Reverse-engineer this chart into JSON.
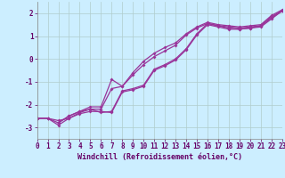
{
  "xlabel": "Windchill (Refroidissement éolien,°C)",
  "background_color": "#cceeff",
  "grid_color": "#aaddcc",
  "line_color": "#993399",
  "xlim": [
    0,
    23
  ],
  "ylim": [
    -3.5,
    2.5
  ],
  "yticks": [
    -3,
    -2,
    -1,
    0,
    1,
    2
  ],
  "xticks": [
    0,
    1,
    2,
    3,
    4,
    5,
    6,
    7,
    8,
    9,
    10,
    11,
    12,
    13,
    14,
    15,
    16,
    17,
    18,
    19,
    20,
    21,
    22,
    23
  ],
  "series1_x": [
    0,
    1,
    2,
    3,
    4,
    5,
    6,
    7,
    8,
    9,
    10,
    11,
    12,
    13,
    14,
    15,
    16,
    17,
    18,
    19,
    20,
    21,
    22,
    23
  ],
  "series1_y": [
    -2.6,
    -2.6,
    -2.8,
    -2.5,
    -2.3,
    -2.2,
    -2.2,
    -1.3,
    -1.2,
    -0.7,
    -0.25,
    0.1,
    0.35,
    0.6,
    1.05,
    1.35,
    1.55,
    1.45,
    1.4,
    1.35,
    1.4,
    1.45,
    1.85,
    2.1
  ],
  "series2_x": [
    0,
    1,
    2,
    3,
    4,
    5,
    6,
    7,
    8,
    9,
    10,
    11,
    12,
    13,
    14,
    15,
    16,
    17,
    18,
    19,
    20,
    21,
    22,
    23
  ],
  "series2_y": [
    -2.6,
    -2.6,
    -2.7,
    -2.6,
    -2.35,
    -2.2,
    -2.35,
    -2.3,
    -1.4,
    -1.3,
    -1.15,
    -0.45,
    -0.25,
    0.0,
    0.45,
    1.1,
    1.55,
    1.45,
    1.35,
    1.3,
    1.35,
    1.45,
    1.8,
    2.1
  ],
  "series3_x": [
    0,
    1,
    2,
    3,
    4,
    5,
    6,
    7,
    8,
    9,
    10,
    11,
    12,
    13,
    14,
    15,
    16,
    17,
    18,
    19,
    20,
    21,
    22,
    23
  ],
  "series3_y": [
    -2.6,
    -2.6,
    -2.9,
    -2.6,
    -2.4,
    -2.3,
    -2.3,
    -2.35,
    -1.45,
    -1.35,
    -1.2,
    -0.5,
    -0.3,
    -0.05,
    0.4,
    1.05,
    1.5,
    1.4,
    1.3,
    1.3,
    1.35,
    1.4,
    1.75,
    2.1
  ],
  "series4_x": [
    2,
    3,
    4,
    5,
    6,
    7,
    8,
    9,
    10,
    11,
    12,
    13,
    14,
    15,
    16,
    17,
    18,
    19,
    20,
    21,
    22,
    23
  ],
  "series4_y": [
    -2.8,
    -2.5,
    -2.3,
    -2.1,
    -2.1,
    -0.9,
    -1.2,
    -0.6,
    -0.1,
    0.25,
    0.5,
    0.7,
    1.1,
    1.4,
    1.6,
    1.5,
    1.45,
    1.4,
    1.45,
    1.5,
    1.9,
    2.15
  ],
  "xlabel_fontsize": 6.0,
  "tick_fontsize": 5.5,
  "lw": 0.9,
  "ms": 2.0
}
